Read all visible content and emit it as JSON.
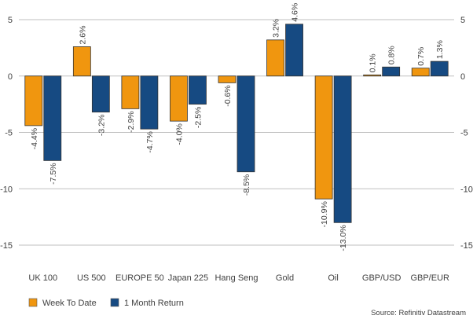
{
  "chart_data": {
    "type": "bar",
    "categories": [
      "UK 100",
      "US 500",
      "EUROPE 50",
      "Japan 225",
      "Hang Seng",
      "Gold",
      "Oil",
      "GBP/USD",
      "GBP/EUR"
    ],
    "series": [
      {
        "name": "Week To Date",
        "color": "#F0960F",
        "values": [
          -4.4,
          2.6,
          -2.9,
          -4.0,
          -0.6,
          3.2,
          -10.9,
          0.1,
          0.7
        ],
        "labels": [
          "-4.4%",
          "2.6%",
          "-2.9%",
          "-4.0%",
          "-0.6%",
          "3.2%",
          "-10.9%",
          "0.1%",
          "0.7%"
        ]
      },
      {
        "name": "1 Month Return",
        "color": "#164A82",
        "values": [
          -7.5,
          -3.2,
          -4.7,
          -2.5,
          -8.5,
          4.6,
          -13.0,
          0.8,
          1.3
        ],
        "labels": [
          "-7.5%",
          "-3.2%",
          "-4.7%",
          "-2.5%",
          "-8.5%",
          "4.6%",
          "-13.0%",
          "0.8%",
          "1.3%"
        ]
      }
    ],
    "ylim": [
      -15,
      5
    ],
    "yticks": [
      "5",
      "0",
      "-5",
      "-10",
      "-15"
    ],
    "ytick_values": [
      5,
      0,
      -5,
      -10,
      -15
    ],
    "grid": true,
    "legend": "bottom-left",
    "source": "Source: Refinitiv Datastream"
  }
}
